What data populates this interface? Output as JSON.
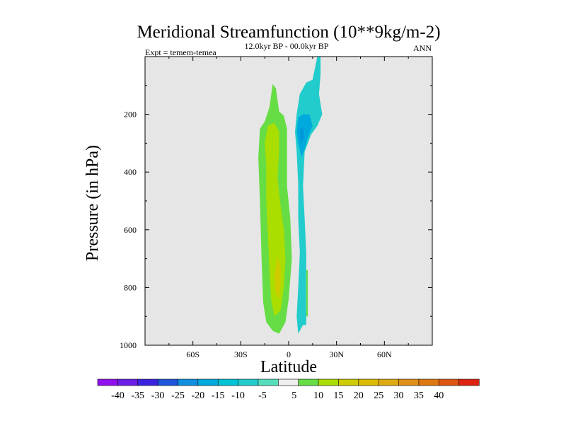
{
  "chart_data": {
    "type": "contour",
    "title": "Meridional Streamfunction (10**9kg/m-2)",
    "subtitle": "12.0kyr BP - 00.0kyr BP",
    "left_label": "Expt = temem-temea",
    "right_label": "ANN",
    "xlabel": "Latitude",
    "ylabel": "Pressure (in hPa)",
    "x_ticks": [
      {
        "value": -60,
        "label": "60S"
      },
      {
        "value": -30,
        "label": "30S"
      },
      {
        "value": 0,
        "label": "0"
      },
      {
        "value": 30,
        "label": "30N"
      },
      {
        "value": 60,
        "label": "60N"
      }
    ],
    "y_ticks": [
      {
        "value": 200,
        "label": "200"
      },
      {
        "value": 400,
        "label": "400"
      },
      {
        "value": 600,
        "label": "600"
      },
      {
        "value": 800,
        "label": "800"
      },
      {
        "value": 1000,
        "label": "1000"
      }
    ],
    "xlim": [
      -90,
      90
    ],
    "ylim": [
      1000,
      0
    ],
    "background_color": "#e6e6e6",
    "regions": [
      {
        "name": "positive-cell-5-10",
        "value_range": "5 to 10",
        "color": "#66dd44",
        "polygon": [
          [
            -15,
            225
          ],
          [
            -12,
            175
          ],
          [
            -10,
            95
          ],
          [
            -8,
            110
          ],
          [
            -6,
            190
          ],
          [
            -3,
            205
          ],
          [
            -1,
            250
          ],
          [
            -1,
            450
          ],
          [
            1,
            560
          ],
          [
            2,
            700
          ],
          [
            0,
            840
          ],
          [
            -2,
            920
          ],
          [
            -6,
            960
          ],
          [
            -10,
            950
          ],
          [
            -14,
            920
          ],
          [
            -16,
            850
          ],
          [
            -17,
            700
          ],
          [
            -18,
            500
          ],
          [
            -19,
            350
          ],
          [
            -18,
            250
          ]
        ]
      },
      {
        "name": "positive-cell-10-15",
        "value_range": "10 to 15",
        "color": "#aadd00",
        "polygon": [
          [
            -13,
            240
          ],
          [
            -9,
            230
          ],
          [
            -6,
            260
          ],
          [
            -6,
            330
          ],
          [
            -7,
            420
          ],
          [
            -5,
            520
          ],
          [
            -3,
            600
          ],
          [
            -2,
            700
          ],
          [
            -3,
            800
          ],
          [
            -5,
            880
          ],
          [
            -9,
            900
          ],
          [
            -11,
            840
          ],
          [
            -12,
            740
          ],
          [
            -13,
            620
          ],
          [
            -14,
            500
          ],
          [
            -14,
            380
          ],
          [
            -15,
            300
          ]
        ]
      },
      {
        "name": "positive-cell-15-20",
        "value_range": "15 to 20",
        "color": "#cccc00",
        "polygon": [
          [
            -7,
            690
          ],
          [
            -5,
            730
          ],
          [
            -5,
            790
          ],
          [
            -6,
            840
          ],
          [
            -8,
            820
          ],
          [
            -9,
            760
          ]
        ]
      },
      {
        "name": "positive-small-5-10",
        "value_range": "5 to 10",
        "color": "#66dd44",
        "polygon": [
          [
            11,
            740
          ],
          [
            12,
            740
          ],
          [
            12,
            900
          ],
          [
            11,
            900
          ]
        ]
      },
      {
        "name": "negative-cell-minus-5-minus-10",
        "value_range": "-5 to -10",
        "color": "#22cccc",
        "polygon": [
          [
            18,
            0
          ],
          [
            20,
            0
          ],
          [
            20,
            60
          ],
          [
            19,
            130
          ],
          [
            21,
            200
          ],
          [
            18,
            240
          ],
          [
            14,
            270
          ],
          [
            10,
            330
          ],
          [
            9,
            450
          ],
          [
            10,
            560
          ],
          [
            11,
            680
          ],
          [
            11,
            780
          ],
          [
            11,
            900
          ],
          [
            11,
            930
          ],
          [
            9,
            930
          ],
          [
            6,
            960
          ],
          [
            5,
            900
          ],
          [
            6,
            800
          ],
          [
            7,
            680
          ],
          [
            6,
            560
          ],
          [
            6,
            440
          ],
          [
            5,
            330
          ],
          [
            4,
            260
          ],
          [
            5,
            200
          ],
          [
            7,
            130
          ],
          [
            11,
            90
          ],
          [
            15,
            80
          ]
        ]
      },
      {
        "name": "negative-cell-minus-10-minus-15",
        "value_range": "-10 to -15",
        "color": "#00aadd",
        "polygon": [
          [
            6,
            210
          ],
          [
            9,
            200
          ],
          [
            13,
            200
          ],
          [
            15,
            240
          ],
          [
            12,
            280
          ],
          [
            10,
            320
          ],
          [
            8,
            350
          ],
          [
            6,
            300
          ],
          [
            5,
            260
          ]
        ]
      },
      {
        "name": "negative-cell-minus-15-minus-20",
        "value_range": "-15 to -20",
        "color": "#0099dd",
        "polygon": [
          [
            7,
            250
          ],
          [
            9,
            245
          ],
          [
            10,
            280
          ],
          [
            8,
            300
          ],
          [
            7,
            285
          ]
        ]
      }
    ],
    "colorbar": {
      "colors": [
        "#9011ee",
        "#6a1ee6",
        "#3b22e0",
        "#1d55dd",
        "#0f8fdd",
        "#00aadd",
        "#00c4d6",
        "#22cccc",
        "#55ddbb",
        "#eeeeee",
        "#66dd44",
        "#aadd00",
        "#cccc00",
        "#ddbb00",
        "#ddaa11",
        "#e09018",
        "#dd7711",
        "#dd5511",
        "#dd2211"
      ],
      "labels": [
        "-40",
        "-35",
        "-30",
        "-25",
        "-20",
        "-15",
        "-10",
        "-5",
        "5",
        "10",
        "15",
        "20",
        "25",
        "30",
        "35",
        "40"
      ]
    }
  }
}
